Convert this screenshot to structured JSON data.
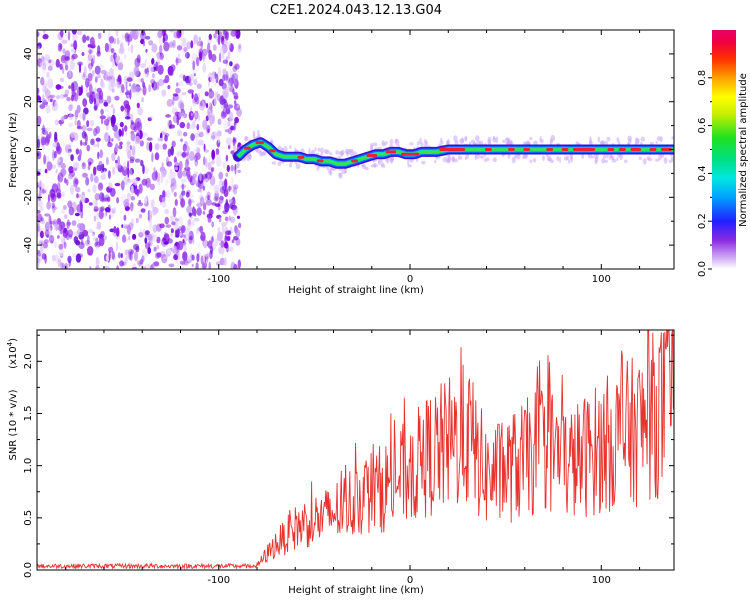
{
  "title": "C2E1.2024.043.12.13.G04",
  "colors": {
    "snr_line": "#e8322e",
    "background": "#ffffff",
    "axis": "#000000"
  },
  "chart_data": [
    {
      "type": "heatmap",
      "ylabel": "Frequency (Hz)",
      "xlabel": "Height of straight line (km)",
      "xlim": [
        -195,
        138
      ],
      "ylim": [
        -50,
        50
      ],
      "x_ticks": [
        -100,
        0,
        100
      ],
      "x_tick_labels": [
        "-100",
        "0",
        "100"
      ],
      "y_ticks": [
        -40,
        -20,
        0,
        20,
        40
      ],
      "y_tick_labels": [
        "-40",
        "-20",
        "0",
        "20",
        "40"
      ],
      "noise_region_xmax": -89,
      "colorbar": {
        "label": "Normalized spectral amplitude",
        "range": [
          0,
          1
        ],
        "ticks": [
          0.0,
          0.2,
          0.4,
          0.6,
          0.8
        ],
        "tick_labels": [
          "0.0",
          "0.2",
          "0.4",
          "0.6",
          "0.8"
        ],
        "colormap": "rainbow"
      },
      "ridge": {
        "x": [
          -90,
          -86,
          -82,
          -78,
          -74,
          -70,
          -66,
          -62,
          -58,
          -54,
          -50,
          -46,
          -42,
          -38,
          -34,
          -30,
          -26,
          -22,
          -18,
          -14,
          -10,
          -6,
          -2,
          2,
          6,
          10,
          14,
          20,
          30,
          40,
          50,
          60,
          70,
          80,
          90,
          100,
          110,
          120,
          130,
          138
        ],
        "y": [
          -3,
          0,
          2,
          3,
          1,
          -2,
          -3,
          -3,
          -3,
          -4,
          -4,
          -5,
          -5,
          -6,
          -6,
          -5,
          -4,
          -3,
          -2,
          -2,
          -1,
          -1,
          -2,
          -2,
          -1,
          -1,
          -1,
          0,
          0,
          0,
          0,
          0,
          0,
          0,
          0,
          0,
          0,
          0,
          0,
          0
        ]
      }
    },
    {
      "type": "line",
      "ylabel": "SNR (10 * v/v)",
      "xlabel": "Height of straight line (km)",
      "y_multiplier": "(x10",
      "y_multiplier_exp": "4",
      "y_multiplier_close": ")",
      "xlim": [
        -195,
        138
      ],
      "ylim": [
        0,
        23000
      ],
      "x_ticks": [
        -100,
        0,
        100
      ],
      "x_tick_labels": [
        "-100",
        "0",
        "100"
      ],
      "y_ticks": [
        0,
        5000,
        10000,
        15000,
        20000
      ],
      "y_tick_labels": [
        "0.0",
        "0.5",
        "1.0",
        "1.5",
        "2.0"
      ],
      "series": [
        {
          "x": [
            -195,
            -180,
            -160,
            -140,
            -120,
            -100,
            -90,
            -80,
            -75,
            -70,
            -65,
            -60,
            -55,
            -50,
            -45,
            -40,
            -35,
            -30,
            -25,
            -20,
            -15,
            -10,
            -5,
            0,
            5,
            10,
            15,
            20,
            25,
            30,
            35,
            40,
            45,
            50,
            55,
            60,
            65,
            70,
            75,
            80,
            85,
            90,
            95,
            100,
            105,
            110,
            115,
            120,
            125,
            130,
            135,
            138
          ],
          "y": [
            300,
            300,
            300,
            300,
            300,
            300,
            300,
            400,
            1500,
            2500,
            3200,
            4000,
            4500,
            4800,
            5000,
            5500,
            6000,
            6600,
            7200,
            7500,
            7800,
            8400,
            9000,
            9500,
            10200,
            11000,
            11500,
            12000,
            12500,
            13000,
            11000,
            9000,
            9200,
            9500,
            10000,
            10500,
            11200,
            12000,
            11500,
            10500,
            10200,
            10800,
            11300,
            11800,
            12300,
            12800,
            13100,
            13500,
            14500,
            15200,
            15800,
            15800
          ]
        }
      ]
    }
  ]
}
